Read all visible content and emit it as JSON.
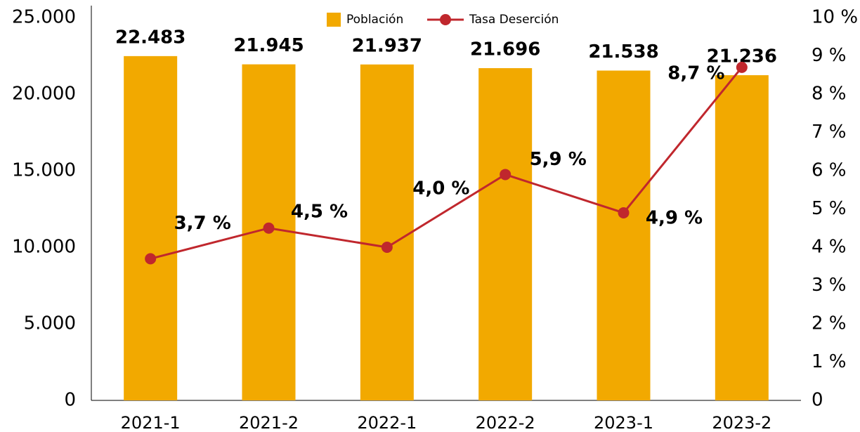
{
  "chart_data": {
    "type": "bar",
    "categories": [
      "2021-1",
      "2021-2",
      "2022-1",
      "2022-2",
      "2023-1",
      "2023-2"
    ],
    "series": [
      {
        "name": "Población",
        "type": "bar",
        "color": "#f2a900",
        "values": [
          22483,
          21945,
          21937,
          21696,
          21538,
          21236
        ],
        "value_labels": [
          "22.483",
          "21.945",
          "21.937",
          "21.696",
          "21.538",
          "21.236"
        ]
      },
      {
        "name": "Tasa Deserción",
        "type": "line",
        "axis": "y2",
        "color": "#c0272d",
        "values": [
          3.7,
          4.5,
          4.0,
          5.9,
          4.9,
          8.7
        ],
        "value_labels": [
          "3,7 %",
          "4,5 %",
          "4,0 %",
          "5,9 %",
          "4,9 %",
          "8,7 %"
        ]
      }
    ],
    "ylim": [
      0,
      25000
    ],
    "yticks": [
      0,
      {
        "value": 5000,
        "label": "5.000"
      },
      {
        "value": 10000,
        "label": "10.000"
      },
      {
        "value": 15000,
        "label": "15.000"
      },
      {
        "value": 20000,
        "label": "20.000"
      },
      {
        "value": 25000,
        "label": "25.000"
      }
    ],
    "y2lim": [
      0,
      10
    ],
    "y2ticks": [
      0,
      {
        "value": 1,
        "label": "1 %"
      },
      {
        "value": 2,
        "label": "2 %"
      },
      {
        "value": 3,
        "label": "3 %"
      },
      {
        "value": 4,
        "label": "4 %"
      },
      {
        "value": 5,
        "label": "5 %"
      },
      {
        "value": 6,
        "label": "6 %"
      },
      {
        "value": 7,
        "label": "7 %"
      },
      {
        "value": 8,
        "label": "8 %"
      },
      {
        "value": 9,
        "label": "9 %"
      },
      {
        "value": 10,
        "label": "10 %"
      }
    ],
    "legend": "top"
  }
}
